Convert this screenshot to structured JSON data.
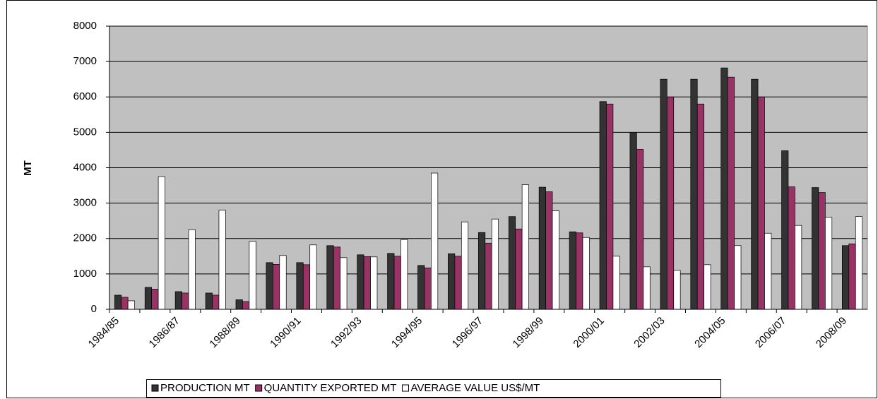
{
  "chart_data": {
    "type": "bar",
    "categories": [
      "1984/85",
      null,
      "1986/87",
      null,
      "1988/89",
      null,
      "1990/91",
      null,
      "1992/93",
      null,
      "1994/95",
      null,
      "1996/97",
      null,
      "1998/99",
      null,
      "2000/01",
      null,
      "2002/03",
      null,
      "2004/05",
      null,
      "2006/07",
      null,
      "2008/09"
    ],
    "series": [
      {
        "name": "PRODUCTION MT",
        "color": "#333333",
        "values": [
          400,
          620,
          500,
          460,
          270,
          1320,
          1320,
          1800,
          1540,
          1580,
          1240,
          1570,
          2170,
          2620,
          3450,
          2190,
          5870,
          5000,
          6500,
          6500,
          6820,
          6500,
          4480,
          3440,
          1800
        ]
      },
      {
        "name": "QUANTITY EXPORTED MT",
        "color": "#993366",
        "values": [
          340,
          570,
          460,
          400,
          220,
          1270,
          1260,
          1760,
          1490,
          1500,
          1170,
          1500,
          1870,
          2270,
          3320,
          2160,
          5800,
          4520,
          6000,
          5800,
          6560,
          6000,
          3460,
          3300,
          1850
        ]
      },
      {
        "name": "AVERAGE VALUE US$/MT",
        "color": "#ffffff",
        "values": [
          240,
          3750,
          2250,
          2800,
          1920,
          1520,
          1820,
          1460,
          1480,
          1970,
          3850,
          2470,
          2550,
          3520,
          2780,
          2030,
          1500,
          1200,
          1100,
          1260,
          1800,
          2150,
          2370,
          2600,
          2620
        ]
      }
    ],
    "y_label": "MT",
    "ylim": [
      0,
      8000
    ],
    "yticks": [
      0,
      1000,
      2000,
      3000,
      4000,
      5000,
      6000,
      7000,
      8000
    ],
    "grid": true,
    "background": "#c0c0c0",
    "legend": "bottom"
  }
}
